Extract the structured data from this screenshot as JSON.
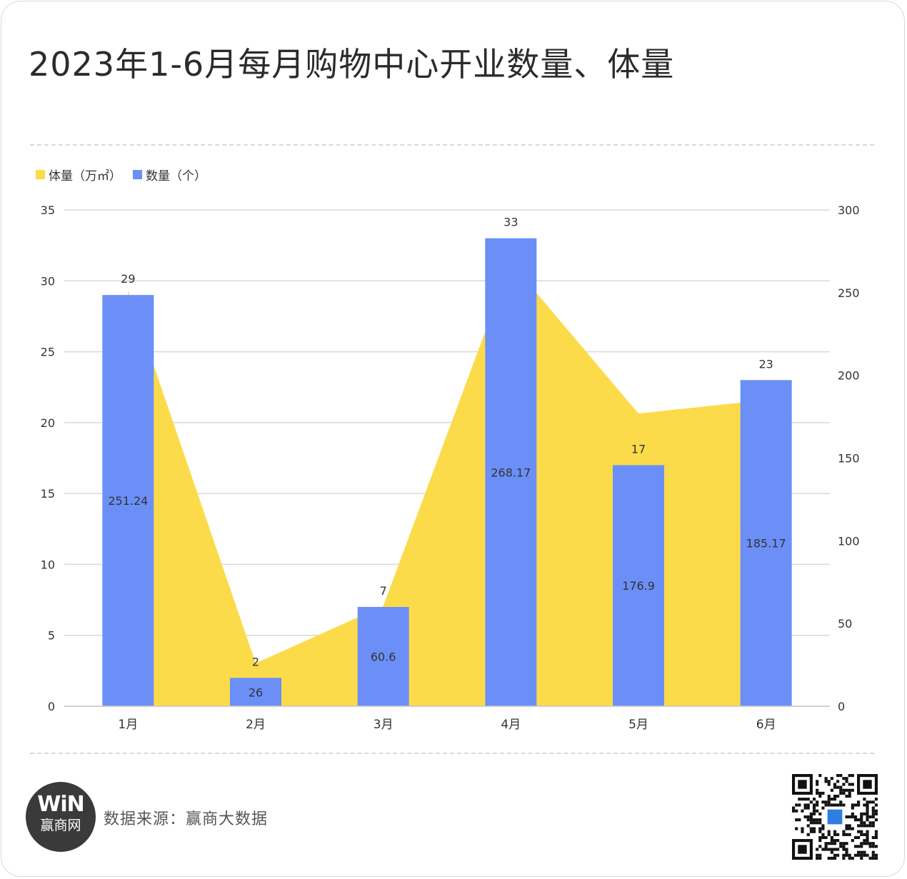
{
  "title": "2023年1-6月每月购物中心开业数量、体量",
  "legend": {
    "volume_label": "体量（万㎡）",
    "count_label": "数量（个）"
  },
  "colors": {
    "volume": "#FCDB4A",
    "count": "#6B8FF7",
    "text": "#333333",
    "grid": "#d9d9d9"
  },
  "footer": {
    "logo_mark": "WiN",
    "logo_text": "赢商网",
    "source": "数据来源：赢商大数据"
  },
  "chart_data": {
    "type": "bar",
    "categories": [
      "1月",
      "2月",
      "3月",
      "4月",
      "5月",
      "6月"
    ],
    "series": [
      {
        "name": "体量（万㎡）",
        "type": "area",
        "axis": "right",
        "values": [
          251.24,
          26,
          60.6,
          268.17,
          176.9,
          185.17
        ]
      },
      {
        "name": "数量（个）",
        "type": "bar",
        "axis": "left",
        "values": [
          29,
          2,
          7,
          33,
          17,
          23
        ]
      }
    ],
    "left_axis": {
      "ylim": [
        0,
        35
      ],
      "ticks": [
        0,
        5,
        10,
        15,
        20,
        25,
        30,
        35
      ]
    },
    "right_axis": {
      "ylim": [
        0,
        300
      ],
      "ticks": [
        0,
        50,
        100,
        150,
        200,
        250,
        300
      ]
    },
    "legend_position": "top-left",
    "grid": true
  }
}
